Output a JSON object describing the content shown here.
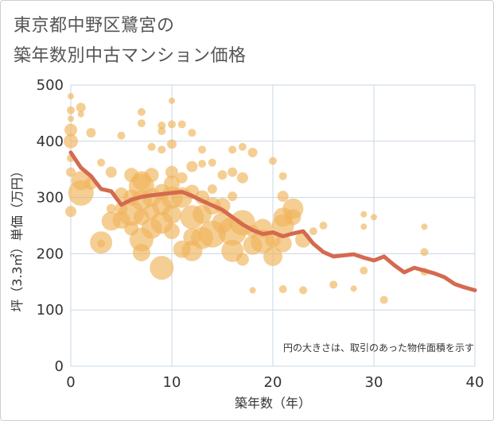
{
  "title_line1": "東京都中野区鷺宮の",
  "title_line2": "築年数別中古マンション価格",
  "chart_data": {
    "type": "scatter",
    "xlabel": "築年数（年）",
    "ylabel": "坪（3.3㎡）単価（万円）",
    "xlim": [
      0,
      40
    ],
    "ylim": [
      0,
      500
    ],
    "x_ticks": [
      "0",
      "10",
      "20",
      "30",
      "40"
    ],
    "y_ticks": [
      "0",
      "100",
      "200",
      "300",
      "400",
      "500"
    ],
    "grid": true,
    "note": "円の大きさは、取引のあった物件面積を示す",
    "bubble_color": "#f0b45a",
    "line_color": "#d46a4f",
    "bubbles": [
      {
        "x": 0,
        "y": 480,
        "r": 4
      },
      {
        "x": 0,
        "y": 455,
        "r": 5
      },
      {
        "x": 0,
        "y": 440,
        "r": 4
      },
      {
        "x": 0,
        "y": 420,
        "r": 8
      },
      {
        "x": 0,
        "y": 400,
        "r": 9
      },
      {
        "x": 0,
        "y": 370,
        "r": 5
      },
      {
        "x": 0,
        "y": 345,
        "r": 6
      },
      {
        "x": 0,
        "y": 275,
        "r": 7
      },
      {
        "x": 1,
        "y": 460,
        "r": 6
      },
      {
        "x": 1,
        "y": 448,
        "r": 4
      },
      {
        "x": 1,
        "y": 330,
        "r": 12
      },
      {
        "x": 1,
        "y": 308,
        "r": 16
      },
      {
        "x": 2,
        "y": 415,
        "r": 6
      },
      {
        "x": 2,
        "y": 325,
        "r": 8
      },
      {
        "x": 3,
        "y": 362,
        "r": 5
      },
      {
        "x": 3,
        "y": 220,
        "r": 14
      },
      {
        "x": 3,
        "y": 218,
        "r": 5
      },
      {
        "x": 4,
        "y": 345,
        "r": 7
      },
      {
        "x": 4,
        "y": 280,
        "r": 6
      },
      {
        "x": 4,
        "y": 258,
        "r": 12
      },
      {
        "x": 5,
        "y": 410,
        "r": 5
      },
      {
        "x": 5,
        "y": 305,
        "r": 9
      },
      {
        "x": 5,
        "y": 280,
        "r": 8
      },
      {
        "x": 5,
        "y": 260,
        "r": 11
      },
      {
        "x": 6,
        "y": 340,
        "r": 9
      },
      {
        "x": 6,
        "y": 300,
        "r": 10
      },
      {
        "x": 6,
        "y": 272,
        "r": 16
      },
      {
        "x": 6,
        "y": 245,
        "r": 9
      },
      {
        "x": 7,
        "y": 452,
        "r": 5
      },
      {
        "x": 7,
        "y": 432,
        "r": 5
      },
      {
        "x": 7,
        "y": 330,
        "r": 12
      },
      {
        "x": 7,
        "y": 320,
        "r": 16
      },
      {
        "x": 7,
        "y": 295,
        "r": 13
      },
      {
        "x": 7,
        "y": 265,
        "r": 10
      },
      {
        "x": 7,
        "y": 225,
        "r": 15
      },
      {
        "x": 7,
        "y": 202,
        "r": 11
      },
      {
        "x": 8,
        "y": 390,
        "r": 5
      },
      {
        "x": 8,
        "y": 340,
        "r": 9
      },
      {
        "x": 8,
        "y": 300,
        "r": 12
      },
      {
        "x": 8,
        "y": 275,
        "r": 10
      },
      {
        "x": 8,
        "y": 245,
        "r": 13
      },
      {
        "x": 9,
        "y": 428,
        "r": 5
      },
      {
        "x": 9,
        "y": 418,
        "r": 5
      },
      {
        "x": 9,
        "y": 385,
        "r": 5
      },
      {
        "x": 9,
        "y": 310,
        "r": 10
      },
      {
        "x": 9,
        "y": 285,
        "r": 12
      },
      {
        "x": 9,
        "y": 255,
        "r": 14
      },
      {
        "x": 9,
        "y": 175,
        "r": 15
      },
      {
        "x": 10,
        "y": 472,
        "r": 4
      },
      {
        "x": 10,
        "y": 430,
        "r": 5
      },
      {
        "x": 10,
        "y": 395,
        "r": 6
      },
      {
        "x": 10,
        "y": 345,
        "r": 8
      },
      {
        "x": 10,
        "y": 325,
        "r": 10
      },
      {
        "x": 10,
        "y": 300,
        "r": 14
      },
      {
        "x": 10,
        "y": 270,
        "r": 12
      },
      {
        "x": 10,
        "y": 240,
        "r": 10
      },
      {
        "x": 11,
        "y": 430,
        "r": 5
      },
      {
        "x": 11,
        "y": 335,
        "r": 7
      },
      {
        "x": 11,
        "y": 300,
        "r": 13
      },
      {
        "x": 11,
        "y": 208,
        "r": 11
      },
      {
        "x": 12,
        "y": 415,
        "r": 5
      },
      {
        "x": 12,
        "y": 355,
        "r": 7
      },
      {
        "x": 12,
        "y": 310,
        "r": 9
      },
      {
        "x": 12,
        "y": 265,
        "r": 15
      },
      {
        "x": 12,
        "y": 230,
        "r": 11
      },
      {
        "x": 12,
        "y": 205,
        "r": 13
      },
      {
        "x": 13,
        "y": 385,
        "r": 5
      },
      {
        "x": 13,
        "y": 360,
        "r": 5
      },
      {
        "x": 13,
        "y": 300,
        "r": 9
      },
      {
        "x": 13,
        "y": 270,
        "r": 12
      },
      {
        "x": 13,
        "y": 228,
        "r": 14
      },
      {
        "x": 14,
        "y": 362,
        "r": 5
      },
      {
        "x": 14,
        "y": 315,
        "r": 6
      },
      {
        "x": 14,
        "y": 285,
        "r": 11
      },
      {
        "x": 14,
        "y": 235,
        "r": 17
      },
      {
        "x": 15,
        "y": 340,
        "r": 6
      },
      {
        "x": 15,
        "y": 285,
        "r": 10
      },
      {
        "x": 15,
        "y": 255,
        "r": 13
      },
      {
        "x": 16,
        "y": 385,
        "r": 5
      },
      {
        "x": 16,
        "y": 345,
        "r": 6
      },
      {
        "x": 16,
        "y": 302,
        "r": 6
      },
      {
        "x": 16,
        "y": 240,
        "r": 18
      },
      {
        "x": 16,
        "y": 205,
        "r": 14
      },
      {
        "x": 17,
        "y": 390,
        "r": 5
      },
      {
        "x": 17,
        "y": 335,
        "r": 7
      },
      {
        "x": 17,
        "y": 255,
        "r": 16
      },
      {
        "x": 17,
        "y": 190,
        "r": 8
      },
      {
        "x": 18,
        "y": 380,
        "r": 6
      },
      {
        "x": 18,
        "y": 240,
        "r": 8
      },
      {
        "x": 18,
        "y": 215,
        "r": 12
      },
      {
        "x": 18,
        "y": 135,
        "r": 4
      },
      {
        "x": 19,
        "y": 245,
        "r": 12
      },
      {
        "x": 19,
        "y": 222,
        "r": 15
      },
      {
        "x": 20,
        "y": 365,
        "r": 5
      },
      {
        "x": 20,
        "y": 225,
        "r": 10
      },
      {
        "x": 20,
        "y": 195,
        "r": 12
      },
      {
        "x": 21,
        "y": 338,
        "r": 5
      },
      {
        "x": 21,
        "y": 302,
        "r": 7
      },
      {
        "x": 21,
        "y": 265,
        "r": 12
      },
      {
        "x": 21,
        "y": 250,
        "r": 14
      },
      {
        "x": 21,
        "y": 218,
        "r": 11
      },
      {
        "x": 21,
        "y": 137,
        "r": 5
      },
      {
        "x": 22,
        "y": 280,
        "r": 13
      },
      {
        "x": 22,
        "y": 265,
        "r": 10
      },
      {
        "x": 23,
        "y": 225,
        "r": 10
      },
      {
        "x": 23,
        "y": 135,
        "r": 5
      },
      {
        "x": 24,
        "y": 240,
        "r": 5
      },
      {
        "x": 25,
        "y": 250,
        "r": 5
      },
      {
        "x": 26,
        "y": 145,
        "r": 5
      },
      {
        "x": 28,
        "y": 138,
        "r": 4
      },
      {
        "x": 29,
        "y": 270,
        "r": 4
      },
      {
        "x": 29,
        "y": 248,
        "r": 4
      },
      {
        "x": 29,
        "y": 170,
        "r": 5
      },
      {
        "x": 30,
        "y": 265,
        "r": 4
      },
      {
        "x": 31,
        "y": 118,
        "r": 5
      },
      {
        "x": 35,
        "y": 248,
        "r": 4
      },
      {
        "x": 35,
        "y": 203,
        "r": 5
      },
      {
        "x": 35,
        "y": 168,
        "r": 5
      }
    ],
    "trend": {
      "x": [
        0,
        1,
        2,
        3,
        4,
        5,
        6,
        7,
        8,
        9,
        10,
        11,
        12,
        13,
        14,
        15,
        16,
        17,
        18,
        19,
        20,
        21,
        22,
        23,
        24,
        25,
        26,
        27,
        28,
        29,
        30,
        31,
        32,
        33,
        34,
        35,
        36,
        37,
        38,
        39,
        40
      ],
      "y": [
        380,
        353,
        338,
        315,
        311,
        287,
        296,
        301,
        304,
        306,
        308,
        310,
        303,
        294,
        286,
        278,
        265,
        252,
        242,
        235,
        238,
        231,
        236,
        240,
        218,
        203,
        195,
        197,
        199,
        193,
        188,
        195,
        180,
        167,
        175,
        170,
        165,
        158,
        146,
        140,
        135
      ]
    }
  }
}
